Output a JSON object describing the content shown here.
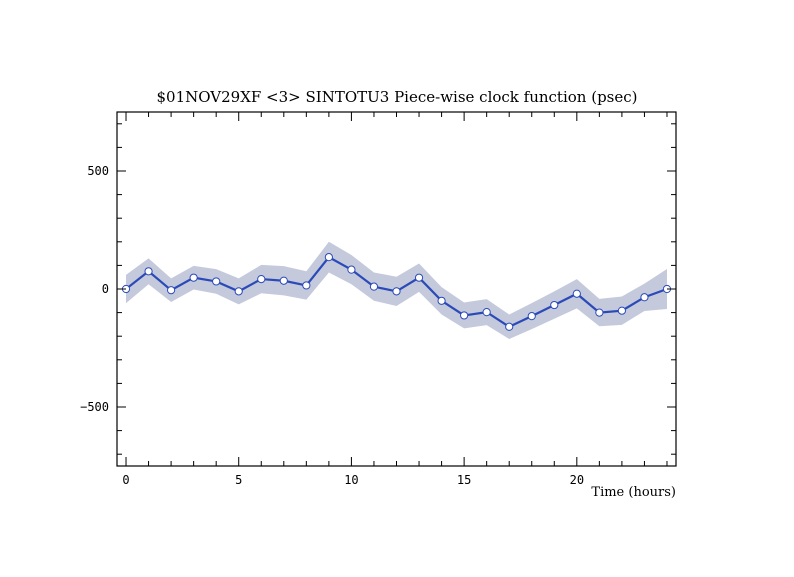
{
  "chart_data": {
    "type": "line",
    "title": "$01NOV29XF <3>  SINTOTU3  Piece-wise clock function (psec)",
    "xlabel": "Time (hours)",
    "ylabel": "",
    "xlim": [
      -0.4,
      24.4
    ],
    "ylim": [
      -750,
      750
    ],
    "x_ticks": [
      0,
      5,
      10,
      15,
      20
    ],
    "y_ticks": [
      -500,
      0,
      500
    ],
    "grid": false,
    "legend": "none",
    "series": [
      {
        "x": [
          0,
          1,
          2,
          3,
          4,
          5,
          6,
          7,
          8,
          9,
          10,
          11,
          12,
          13,
          14,
          15,
          16,
          17,
          18,
          19,
          20,
          21,
          22,
          23,
          24
        ],
        "values": [
          0,
          75,
          -5,
          48,
          32,
          -10,
          42,
          35,
          15,
          135,
          82,
          10,
          -10,
          48,
          -50,
          -112,
          -98,
          -160,
          -115,
          -68,
          -20,
          -100,
          -92,
          -35,
          0
        ],
        "uncertainty": [
          60,
          55,
          50,
          50,
          52,
          55,
          60,
          62,
          60,
          65,
          62,
          60,
          62,
          60,
          58,
          55,
          55,
          52,
          55,
          58,
          62,
          58,
          60,
          58,
          85
        ]
      }
    ],
    "colors": {
      "line": "#2b4ab7",
      "band": "#c4c9dc",
      "marker_fill": "#ffffff",
      "marker_edge": "#2b4ab7",
      "axis": "#000000"
    }
  }
}
